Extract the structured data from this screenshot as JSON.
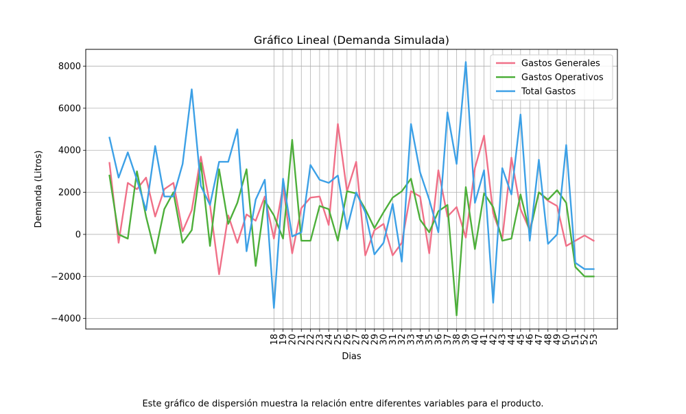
{
  "chart_data": {
    "type": "line",
    "title": "Gráfico Lineal (Demanda Simulada)",
    "xlabel": "Dias",
    "ylabel": "Demanda (Litros)",
    "x": [
      0,
      1,
      2,
      3,
      4,
      5,
      6,
      7,
      8,
      9,
      10,
      11,
      12,
      13,
      14,
      15,
      16,
      17,
      18,
      19,
      20,
      21,
      22,
      23,
      24,
      25,
      26,
      27,
      28,
      29,
      30,
      31,
      32,
      33,
      34,
      35,
      36,
      37,
      38,
      39,
      40,
      41,
      42,
      43,
      44,
      45,
      46,
      47,
      48,
      49,
      50,
      51,
      52,
      53
    ],
    "x_tick_labels": [
      "18",
      "19",
      "20",
      "21",
      "22",
      "23",
      "24",
      "25",
      "26",
      "27",
      "28",
      "29",
      "30",
      "31",
      "32",
      "33",
      "34",
      "35",
      "36",
      "37",
      "38",
      "39",
      "40",
      "41",
      "42",
      "43",
      "44",
      "45",
      "46",
      "47",
      "48",
      "49",
      "50",
      "51",
      "52",
      "53"
    ],
    "x_tick_start": 18,
    "xlim": [
      -2.6,
      55.6
    ],
    "ylim": [
      -4500,
      8800
    ],
    "y_ticks": [
      -4000,
      -2000,
      0,
      2000,
      4000,
      6000,
      8000
    ],
    "y_tick_labels": [
      "−4000",
      "−2000",
      "0",
      "2000",
      "4000",
      "6000",
      "8000"
    ],
    "grid": true,
    "legend_position": "top-right",
    "series": [
      {
        "name": "Gastos Generales",
        "color": "#f07088",
        "values": [
          3400,
          -400,
          2450,
          2150,
          2700,
          850,
          2150,
          2450,
          150,
          1150,
          3700,
          1400,
          -1900,
          900,
          -400,
          950,
          650,
          1800,
          -200,
          2300,
          -900,
          1250,
          1750,
          1800,
          450,
          5250,
          2050,
          3450,
          -1000,
          200,
          500,
          -1000,
          -400,
          2050,
          1800,
          -900,
          3050,
          850,
          1300,
          -150,
          3150,
          4700,
          1000,
          -200,
          3650,
          1200,
          200,
          2000,
          1600,
          1350,
          -550,
          -300,
          -50,
          -300
        ]
      },
      {
        "name": "Gastos Operativos",
        "color": "#4daf3a",
        "values": [
          2800,
          0,
          -200,
          3000,
          850,
          -900,
          1200,
          2000,
          -400,
          200,
          3400,
          -550,
          3100,
          500,
          1500,
          3100,
          -1500,
          1600,
          900,
          -200,
          4500,
          -300,
          -300,
          1350,
          1200,
          -300,
          2050,
          1950,
          1200,
          300,
          1050,
          1750,
          2050,
          2650,
          700,
          100,
          1100,
          1400,
          -3850,
          2250,
          -700,
          1950,
          1300,
          -300,
          -200,
          1900,
          100,
          2000,
          1650,
          2100,
          1500,
          -1550,
          -2000,
          -2000
        ]
      },
      {
        "name": "Total Gastos",
        "color": "#3ca0e6",
        "values": [
          4600,
          2700,
          3900,
          2600,
          1150,
          4200,
          1800,
          1800,
          3350,
          6900,
          2300,
          1400,
          3450,
          3450,
          5000,
          -800,
          1650,
          2600,
          -3500,
          2650,
          -100,
          100,
          3300,
          2600,
          2450,
          2800,
          250,
          2000,
          1050,
          -950,
          -400,
          1450,
          -1300,
          5250,
          2950,
          1650,
          100,
          5800,
          3350,
          8200,
          1500,
          3050,
          -3250,
          3150,
          1900,
          5700,
          -300,
          3550,
          -450,
          0,
          4250,
          -1350,
          -1650,
          -1650
        ]
      }
    ]
  },
  "caption": "Este gráfico de dispersión muestra la relación entre diferentes variables para el producto."
}
